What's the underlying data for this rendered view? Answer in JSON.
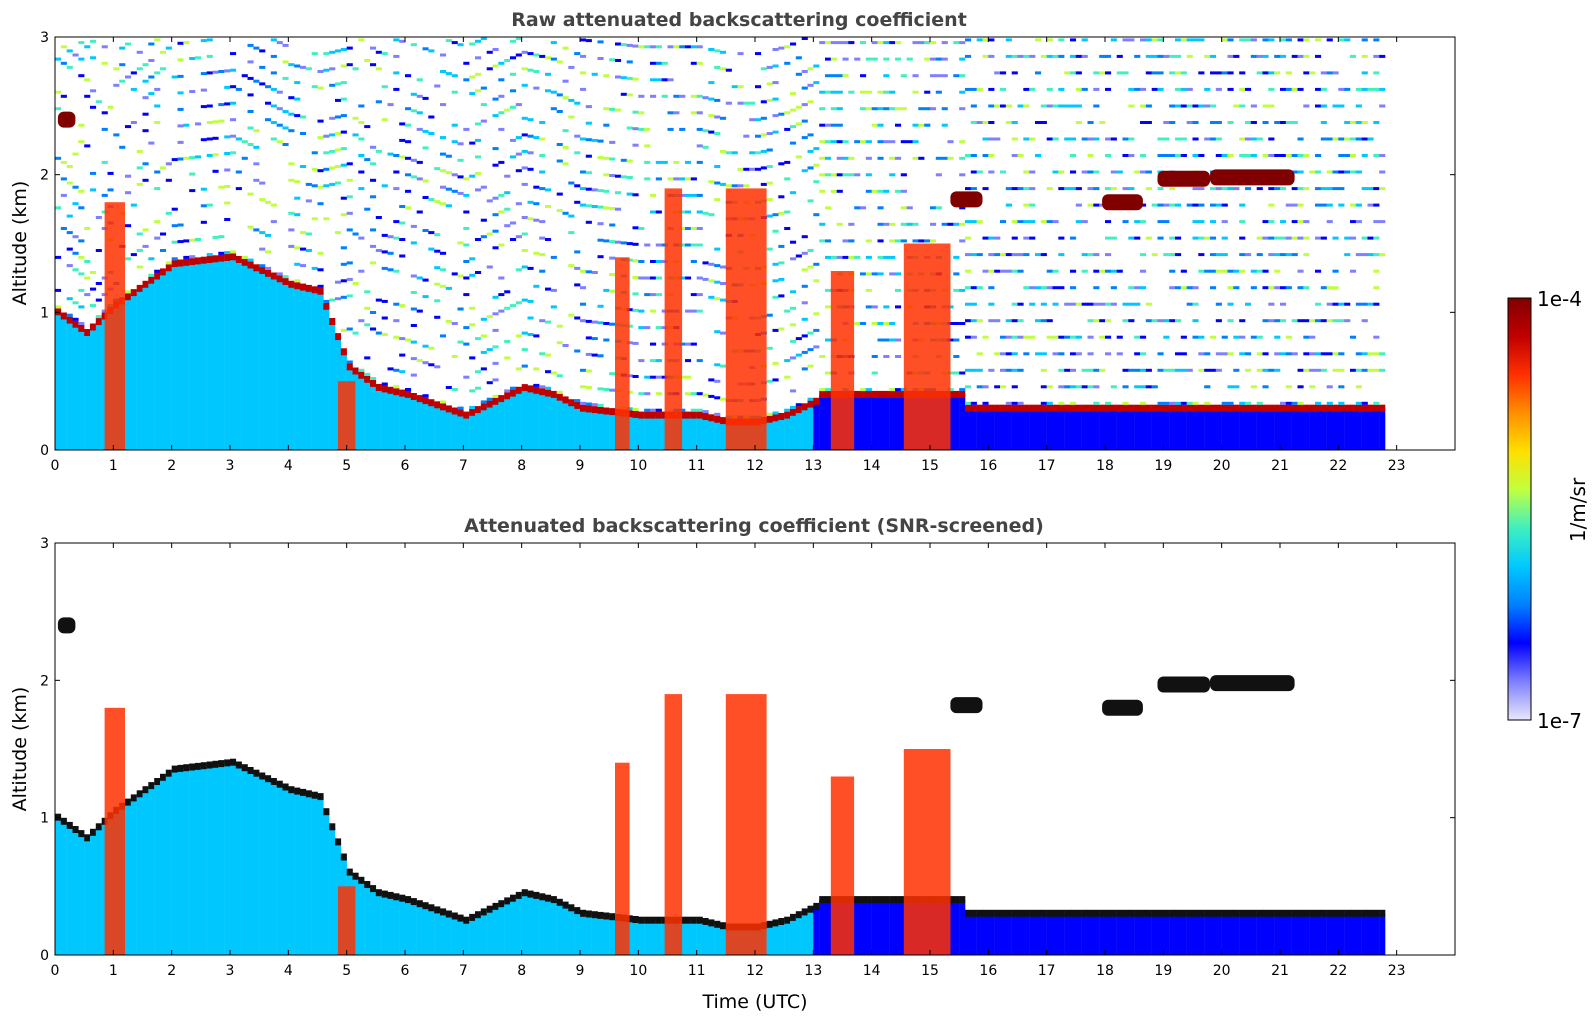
{
  "chart_data": [
    {
      "type": "heatmap",
      "title": "Raw attenuated backscattering coefficient",
      "xlabel": "",
      "ylabel": "Altitude (km)",
      "xlim": [
        0,
        24
      ],
      "ylim": [
        0,
        3
      ],
      "x_ticks": [
        "0",
        "1",
        "2",
        "3",
        "4",
        "5",
        "6",
        "7",
        "8",
        "9",
        "10",
        "11",
        "12",
        "13",
        "14",
        "15",
        "16",
        "17",
        "18",
        "19",
        "20",
        "21",
        "22",
        "23"
      ],
      "y_ticks": [
        "0",
        "1",
        "2",
        "3"
      ],
      "data_end_time": 22.8,
      "boundary_layer_top_km": {
        "t": [
          0,
          0.5,
          1,
          2,
          3,
          4,
          4.5,
          5,
          5.5,
          6,
          7,
          7.5,
          8,
          8.5,
          9,
          10,
          11,
          11.5,
          12,
          12.5,
          13
        ],
        "alt": [
          1.0,
          0.85,
          1.05,
          1.35,
          1.4,
          1.2,
          1.15,
          0.6,
          0.45,
          0.4,
          0.25,
          0.35,
          0.45,
          0.4,
          0.3,
          0.25,
          0.25,
          0.2,
          0.2,
          0.25,
          0.35
        ]
      },
      "cloud_layers": [
        {
          "t_start": 17.95,
          "t_end": 18.65,
          "alt_km": 1.8
        },
        {
          "t_start": 18.9,
          "t_end": 19.8,
          "alt_km": 1.97
        },
        {
          "t_start": 19.8,
          "t_end": 21.25,
          "alt_km": 1.98
        },
        {
          "t_start": 15.35,
          "t_end": 15.9,
          "alt_km": 1.82
        },
        {
          "t_start": 0.05,
          "t_end": 0.35,
          "alt_km": 2.4
        }
      ],
      "precip_columns": [
        {
          "t_start": 0.85,
          "t_end": 1.2,
          "top_km": 1.8
        },
        {
          "t_start": 4.85,
          "t_end": 5.15,
          "top_km": 0.5
        },
        {
          "t_start": 9.6,
          "t_end": 9.85,
          "top_km": 1.4
        },
        {
          "t_start": 10.45,
          "t_end": 10.75,
          "top_km": 1.9
        },
        {
          "t_start": 11.5,
          "t_end": 12.2,
          "top_km": 1.9
        },
        {
          "t_start": 14.55,
          "t_end": 15.35,
          "top_km": 1.5
        },
        {
          "t_start": 13.3,
          "t_end": 13.7,
          "top_km": 1.3
        }
      ]
    },
    {
      "type": "heatmap",
      "title": "Attenuated backscattering coefficient (SNR-screened)",
      "xlabel": "Time (UTC)",
      "ylabel": "Altitude (km)",
      "xlim": [
        0,
        24
      ],
      "ylim": [
        0,
        3
      ],
      "x_ticks": [
        "0",
        "1",
        "2",
        "3",
        "4",
        "5",
        "6",
        "7",
        "8",
        "9",
        "10",
        "11",
        "12",
        "13",
        "14",
        "15",
        "16",
        "17",
        "18",
        "19",
        "20",
        "21",
        "22",
        "23"
      ],
      "y_ticks": [
        "0",
        "1",
        "2",
        "3"
      ],
      "data_end_time": 22.8
    }
  ],
  "colorbar": {
    "label": "1/m/sr",
    "max_label": "1e-4",
    "min_label": "1e-7",
    "scale": "log",
    "range": [
      1e-07,
      0.0001
    ],
    "colors": [
      "#e8e8f8",
      "#7f7fff",
      "#0000ff",
      "#0080ff",
      "#00c8ff",
      "#40f0c0",
      "#c0ff40",
      "#ffe000",
      "#ff9000",
      "#ff3000",
      "#c00000",
      "#800000"
    ]
  }
}
